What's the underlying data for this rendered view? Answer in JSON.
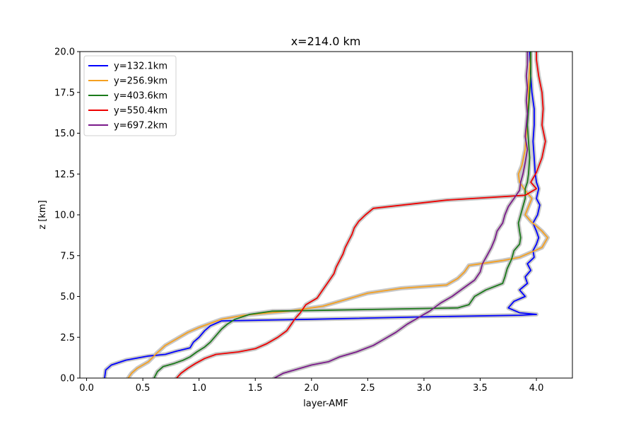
{
  "chart_data": {
    "type": "line",
    "title": "x=214.0 km",
    "xlabel": "layer-AMF",
    "ylabel": "z [km]",
    "xlim": [
      -0.06,
      4.32
    ],
    "ylim": [
      0,
      20
    ],
    "xticks": [
      0.0,
      0.5,
      1.0,
      1.5,
      2.0,
      2.5,
      3.0,
      3.5,
      4.0
    ],
    "xtick_labels": [
      "0.0",
      "0.5",
      "1.0",
      "1.5",
      "2.0",
      "2.5",
      "3.0",
      "3.5",
      "4.0"
    ],
    "yticks": [
      0.0,
      2.5,
      5.0,
      7.5,
      10.0,
      12.5,
      15.0,
      17.5,
      20.0
    ],
    "ytick_labels": [
      "0.0",
      "2.5",
      "5.0",
      "7.5",
      "10.0",
      "12.5",
      "15.0",
      "17.5",
      "20.0"
    ],
    "grid": false,
    "legend_position": "top-left",
    "uncertainty_color": "#c8c8c8",
    "series": [
      {
        "name": "y=132.1km",
        "color": "#0000ff",
        "points": [
          [
            0.16,
            0.0
          ],
          [
            0.17,
            0.5
          ],
          [
            0.22,
            0.8
          ],
          [
            0.35,
            1.1
          ],
          [
            0.55,
            1.35
          ],
          [
            0.7,
            1.45
          ],
          [
            0.8,
            1.65
          ],
          [
            0.92,
            1.85
          ],
          [
            0.95,
            2.2
          ],
          [
            1.0,
            2.5
          ],
          [
            1.05,
            2.9
          ],
          [
            1.1,
            3.2
          ],
          [
            1.2,
            3.5
          ],
          [
            2.0,
            3.6
          ],
          [
            3.0,
            3.75
          ],
          [
            3.85,
            3.85
          ],
          [
            4.0,
            3.9
          ],
          [
            3.85,
            4.0
          ],
          [
            3.75,
            4.3
          ],
          [
            3.8,
            4.7
          ],
          [
            3.9,
            5.0
          ],
          [
            3.85,
            5.4
          ],
          [
            3.92,
            5.8
          ],
          [
            3.9,
            6.2
          ],
          [
            3.95,
            6.6
          ],
          [
            3.92,
            7.0
          ],
          [
            3.98,
            7.4
          ],
          [
            3.97,
            7.8
          ],
          [
            4.0,
            8.2
          ],
          [
            4.02,
            8.6
          ],
          [
            4.0,
            9.0
          ],
          [
            3.97,
            9.5
          ],
          [
            4.01,
            10.0
          ],
          [
            4.03,
            10.6
          ],
          [
            4.0,
            11.0
          ],
          [
            4.02,
            11.6
          ],
          [
            4.0,
            12.0
          ],
          [
            3.99,
            12.5
          ],
          [
            3.98,
            13.5
          ],
          [
            3.97,
            14.5
          ],
          [
            3.98,
            15.5
          ],
          [
            3.98,
            16.5
          ],
          [
            3.96,
            17.5
          ],
          [
            3.95,
            18.5
          ],
          [
            3.94,
            19.5
          ],
          [
            3.94,
            20.0
          ]
        ]
      },
      {
        "name": "y=256.9km",
        "color": "#f5a020",
        "points": [
          [
            0.37,
            0.0
          ],
          [
            0.4,
            0.3
          ],
          [
            0.45,
            0.6
          ],
          [
            0.55,
            1.0
          ],
          [
            0.62,
            1.5
          ],
          [
            0.7,
            2.0
          ],
          [
            0.8,
            2.4
          ],
          [
            0.9,
            2.8
          ],
          [
            1.0,
            3.1
          ],
          [
            1.1,
            3.35
          ],
          [
            1.2,
            3.6
          ],
          [
            1.4,
            3.85
          ],
          [
            1.8,
            4.1
          ],
          [
            2.1,
            4.4
          ],
          [
            2.3,
            4.8
          ],
          [
            2.5,
            5.2
          ],
          [
            2.8,
            5.5
          ],
          [
            3.2,
            5.7
          ],
          [
            3.3,
            6.1
          ],
          [
            3.36,
            6.5
          ],
          [
            3.4,
            6.9
          ],
          [
            3.5,
            7.0
          ],
          [
            3.7,
            7.2
          ],
          [
            3.85,
            7.4
          ],
          [
            4.05,
            8.0
          ],
          [
            4.1,
            8.6
          ],
          [
            4.05,
            9.0
          ],
          [
            3.95,
            9.6
          ],
          [
            3.9,
            10.0
          ],
          [
            3.93,
            10.5
          ],
          [
            3.96,
            11.0
          ],
          [
            3.9,
            11.5
          ],
          [
            3.85,
            12.0
          ],
          [
            3.84,
            12.5
          ],
          [
            3.87,
            13.0
          ],
          [
            3.9,
            14.0
          ],
          [
            3.91,
            15.0
          ],
          [
            3.92,
            16.0
          ],
          [
            3.93,
            17.0
          ],
          [
            3.93,
            18.0
          ],
          [
            3.94,
            19.0
          ],
          [
            3.95,
            20.0
          ]
        ]
      },
      {
        "name": "y=403.6km",
        "color": "#1a7a1a",
        "points": [
          [
            0.6,
            0.0
          ],
          [
            0.63,
            0.4
          ],
          [
            0.68,
            0.7
          ],
          [
            0.78,
            0.9
          ],
          [
            0.86,
            1.1
          ],
          [
            0.92,
            1.3
          ],
          [
            0.98,
            1.6
          ],
          [
            1.05,
            1.9
          ],
          [
            1.1,
            2.2
          ],
          [
            1.15,
            2.6
          ],
          [
            1.2,
            3.0
          ],
          [
            1.25,
            3.3
          ],
          [
            1.32,
            3.6
          ],
          [
            1.45,
            3.9
          ],
          [
            1.65,
            4.1
          ],
          [
            2.5,
            4.2
          ],
          [
            3.3,
            4.3
          ],
          [
            3.4,
            4.5
          ],
          [
            3.45,
            5.0
          ],
          [
            3.55,
            5.4
          ],
          [
            3.7,
            5.8
          ],
          [
            3.72,
            6.2
          ],
          [
            3.74,
            6.7
          ],
          [
            3.78,
            7.3
          ],
          [
            3.8,
            7.8
          ],
          [
            3.85,
            8.2
          ],
          [
            3.86,
            8.6
          ],
          [
            3.85,
            9.0
          ],
          [
            3.84,
            9.5
          ],
          [
            3.86,
            10.0
          ],
          [
            3.88,
            10.5
          ],
          [
            3.9,
            11.0
          ],
          [
            3.9,
            11.6
          ],
          [
            3.92,
            12.0
          ],
          [
            3.93,
            12.5
          ],
          [
            3.94,
            13.5
          ],
          [
            3.93,
            14.5
          ],
          [
            3.92,
            15.5
          ],
          [
            3.93,
            16.5
          ],
          [
            3.94,
            17.5
          ],
          [
            3.95,
            18.5
          ],
          [
            3.95,
            19.5
          ],
          [
            3.95,
            20.0
          ]
        ]
      },
      {
        "name": "y=550.4km",
        "color": "#ee0000",
        "points": [
          [
            0.8,
            0.0
          ],
          [
            0.84,
            0.3
          ],
          [
            0.9,
            0.6
          ],
          [
            0.97,
            0.9
          ],
          [
            1.05,
            1.2
          ],
          [
            1.15,
            1.45
          ],
          [
            1.35,
            1.6
          ],
          [
            1.5,
            1.8
          ],
          [
            1.6,
            2.1
          ],
          [
            1.7,
            2.5
          ],
          [
            1.78,
            2.9
          ],
          [
            1.82,
            3.3
          ],
          [
            1.85,
            3.6
          ],
          [
            1.9,
            4.0
          ],
          [
            1.95,
            4.5
          ],
          [
            2.05,
            4.9
          ],
          [
            2.1,
            5.4
          ],
          [
            2.15,
            5.9
          ],
          [
            2.2,
            6.4
          ],
          [
            2.22,
            6.8
          ],
          [
            2.25,
            7.2
          ],
          [
            2.28,
            7.6
          ],
          [
            2.3,
            8.0
          ],
          [
            2.33,
            8.4
          ],
          [
            2.36,
            8.8
          ],
          [
            2.38,
            9.2
          ],
          [
            2.42,
            9.6
          ],
          [
            2.48,
            10.0
          ],
          [
            2.55,
            10.4
          ],
          [
            3.2,
            10.9
          ],
          [
            3.9,
            11.2
          ],
          [
            4.0,
            11.6
          ],
          [
            3.95,
            12.0
          ],
          [
            4.0,
            12.6
          ],
          [
            4.05,
            13.5
          ],
          [
            4.08,
            14.5
          ],
          [
            4.05,
            15.5
          ],
          [
            4.06,
            16.5
          ],
          [
            4.05,
            17.5
          ],
          [
            4.02,
            18.5
          ],
          [
            4.0,
            19.5
          ],
          [
            4.0,
            20.0
          ]
        ]
      },
      {
        "name": "y=697.2km",
        "color": "#7a1a8a",
        "points": [
          [
            1.67,
            0.0
          ],
          [
            1.75,
            0.3
          ],
          [
            1.85,
            0.5
          ],
          [
            2.0,
            0.8
          ],
          [
            2.15,
            1.0
          ],
          [
            2.25,
            1.3
          ],
          [
            2.4,
            1.6
          ],
          [
            2.55,
            2.0
          ],
          [
            2.65,
            2.4
          ],
          [
            2.75,
            2.8
          ],
          [
            2.85,
            3.3
          ],
          [
            2.95,
            3.7
          ],
          [
            3.05,
            4.1
          ],
          [
            3.15,
            4.6
          ],
          [
            3.25,
            5.0
          ],
          [
            3.35,
            5.5
          ],
          [
            3.45,
            6.0
          ],
          [
            3.5,
            6.5
          ],
          [
            3.52,
            7.0
          ],
          [
            3.56,
            7.5
          ],
          [
            3.6,
            8.0
          ],
          [
            3.63,
            8.5
          ],
          [
            3.65,
            9.0
          ],
          [
            3.7,
            9.5
          ],
          [
            3.72,
            10.0
          ],
          [
            3.75,
            10.5
          ],
          [
            3.8,
            11.0
          ],
          [
            3.85,
            11.5
          ],
          [
            3.86,
            12.0
          ],
          [
            3.88,
            12.5
          ],
          [
            3.9,
            13.2
          ],
          [
            3.92,
            14.0
          ],
          [
            3.9,
            14.8
          ],
          [
            3.91,
            15.5
          ],
          [
            3.92,
            16.2
          ],
          [
            3.91,
            17.0
          ],
          [
            3.92,
            17.8
          ],
          [
            3.91,
            18.5
          ],
          [
            3.92,
            19.2
          ],
          [
            3.92,
            20.0
          ]
        ]
      }
    ]
  }
}
